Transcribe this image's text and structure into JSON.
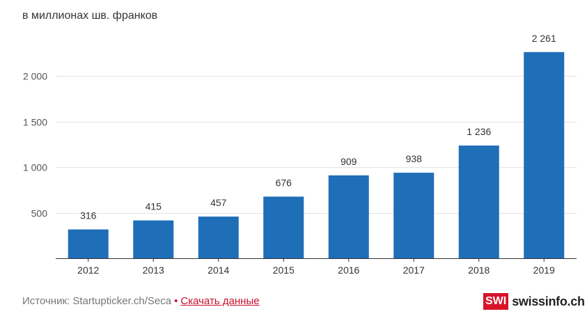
{
  "chart_data": {
    "type": "bar",
    "subtitle": "в миллионах шв. франков",
    "categories": [
      "2012",
      "2013",
      "2014",
      "2015",
      "2016",
      "2017",
      "2018",
      "2019"
    ],
    "values": [
      316,
      415,
      457,
      676,
      909,
      938,
      1236,
      2261
    ],
    "value_labels": [
      "316",
      "415",
      "457",
      "676",
      "909",
      "938",
      "1 236",
      "2 261"
    ],
    "y_ticks": [
      500,
      1000,
      1500,
      2000
    ],
    "y_tick_labels": [
      "500",
      "1 000",
      "1 500",
      "2 000"
    ],
    "ylim": [
      0,
      2300
    ],
    "bar_color": "#1f6eb8",
    "grid": true
  },
  "footer": {
    "source_text": "Источник: Startupticker.ch/Seca",
    "bullet": "•",
    "download_label": "Скачать данные"
  },
  "brand": {
    "box_text": "SWI",
    "name": "swissinfo.ch",
    "color": "#d7142a"
  }
}
